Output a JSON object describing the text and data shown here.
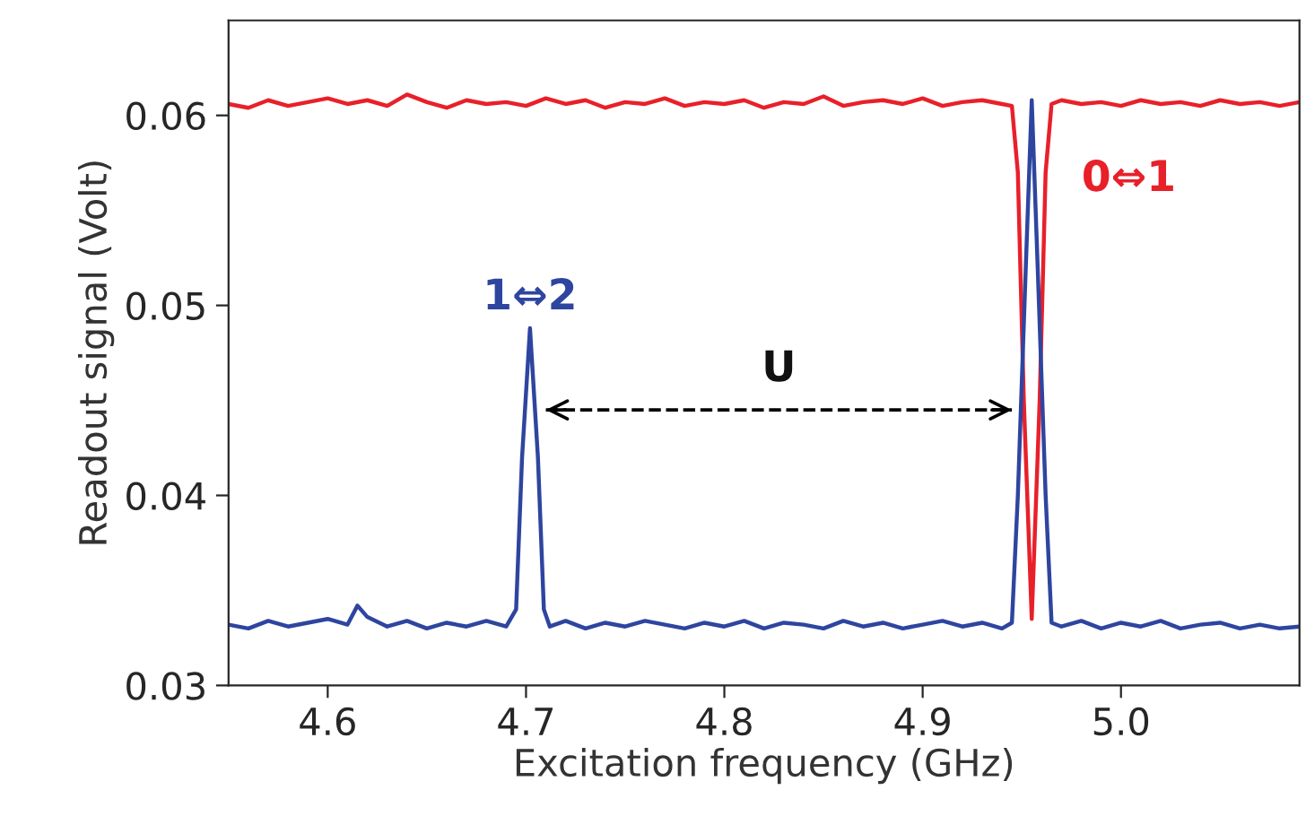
{
  "chart_data": {
    "type": "line",
    "xlabel": "Excitation frequency (GHz)",
    "ylabel": "Readout signal (Volt)",
    "xlim": [
      4.55,
      5.09
    ],
    "xticks": [
      {
        "value": 4.6,
        "label": "4.6"
      },
      {
        "value": 4.7,
        "label": "4.7"
      },
      {
        "value": 4.8,
        "label": "4.8"
      },
      {
        "value": 4.9,
        "label": "4.9"
      },
      {
        "value": 5.0,
        "label": "5.0"
      }
    ],
    "ylim": [
      0.03,
      0.065
    ],
    "yticks": [
      {
        "value": 0.03,
        "label": "0.03"
      },
      {
        "value": 0.04,
        "label": "0.04"
      },
      {
        "value": 0.05,
        "label": "0.05"
      },
      {
        "value": 0.06,
        "label": "0.06"
      }
    ],
    "grid": false,
    "legend": false,
    "line_style": "solid",
    "marker": "none",
    "series": [
      {
        "color": "#e8202a",
        "x": [
          4.55,
          4.56,
          4.57,
          4.58,
          4.59,
          4.6,
          4.61,
          4.62,
          4.63,
          4.64,
          4.65,
          4.66,
          4.67,
          4.68,
          4.69,
          4.7,
          4.71,
          4.72,
          4.73,
          4.74,
          4.75,
          4.76,
          4.77,
          4.78,
          4.79,
          4.8,
          4.81,
          4.82,
          4.83,
          4.84,
          4.85,
          4.86,
          4.87,
          4.88,
          4.89,
          4.9,
          4.91,
          4.92,
          4.93,
          4.94,
          4.945,
          4.948,
          4.951,
          4.955,
          4.959,
          4.962,
          4.965,
          4.97,
          4.98,
          4.99,
          5.0,
          5.01,
          5.02,
          5.03,
          5.04,
          5.05,
          5.06,
          5.07,
          5.08,
          5.09
        ],
        "values": [
          0.0606,
          0.0604,
          0.0608,
          0.0605,
          0.0607,
          0.0609,
          0.0606,
          0.0608,
          0.0605,
          0.0611,
          0.0607,
          0.0604,
          0.0608,
          0.0606,
          0.0607,
          0.0605,
          0.0609,
          0.0606,
          0.0608,
          0.0604,
          0.0607,
          0.0606,
          0.0609,
          0.0605,
          0.0607,
          0.0606,
          0.0608,
          0.0604,
          0.0607,
          0.0606,
          0.061,
          0.0605,
          0.0607,
          0.0608,
          0.0606,
          0.0609,
          0.0605,
          0.0607,
          0.0608,
          0.0606,
          0.0605,
          0.057,
          0.045,
          0.0335,
          0.045,
          0.057,
          0.0606,
          0.0608,
          0.0606,
          0.0607,
          0.0605,
          0.0608,
          0.0606,
          0.0607,
          0.0605,
          0.0608,
          0.0606,
          0.0607,
          0.0605,
          0.0607
        ]
      },
      {
        "color": "#2e45a0",
        "x": [
          4.55,
          4.56,
          4.57,
          4.58,
          4.59,
          4.6,
          4.61,
          4.615,
          4.62,
          4.63,
          4.64,
          4.65,
          4.66,
          4.67,
          4.68,
          4.69,
          4.695,
          4.698,
          4.702,
          4.706,
          4.709,
          4.712,
          4.72,
          4.73,
          4.74,
          4.75,
          4.76,
          4.77,
          4.78,
          4.79,
          4.8,
          4.81,
          4.82,
          4.83,
          4.84,
          4.85,
          4.86,
          4.87,
          4.88,
          4.89,
          4.9,
          4.91,
          4.92,
          4.93,
          4.94,
          4.945,
          4.948,
          4.952,
          4.955,
          4.958,
          4.962,
          4.965,
          4.97,
          4.98,
          4.99,
          5.0,
          5.01,
          5.02,
          5.03,
          5.04,
          5.05,
          5.06,
          5.07,
          5.08,
          5.09
        ],
        "values": [
          0.0332,
          0.033,
          0.0334,
          0.0331,
          0.0333,
          0.0335,
          0.0332,
          0.0342,
          0.0336,
          0.0331,
          0.0334,
          0.033,
          0.0333,
          0.0331,
          0.0334,
          0.0331,
          0.034,
          0.042,
          0.0488,
          0.042,
          0.034,
          0.0331,
          0.0334,
          0.033,
          0.0333,
          0.0331,
          0.0334,
          0.0332,
          0.033,
          0.0333,
          0.0331,
          0.0334,
          0.033,
          0.0333,
          0.0332,
          0.033,
          0.0334,
          0.0331,
          0.0333,
          0.033,
          0.0332,
          0.0334,
          0.0331,
          0.0333,
          0.033,
          0.0333,
          0.04,
          0.052,
          0.0608,
          0.052,
          0.04,
          0.0333,
          0.0331,
          0.0334,
          0.033,
          0.0333,
          0.0331,
          0.0334,
          0.033,
          0.0332,
          0.0333,
          0.033,
          0.0332,
          0.033,
          0.0331
        ]
      },
      {
        "color": "#000000",
        "line_style": "dashed",
        "x": [
          4.71,
          4.945
        ],
        "values": [
          0.0445,
          0.0445
        ]
      }
    ],
    "annotations": [
      "1⇔2",
      "0⇔1",
      "U"
    ]
  }
}
